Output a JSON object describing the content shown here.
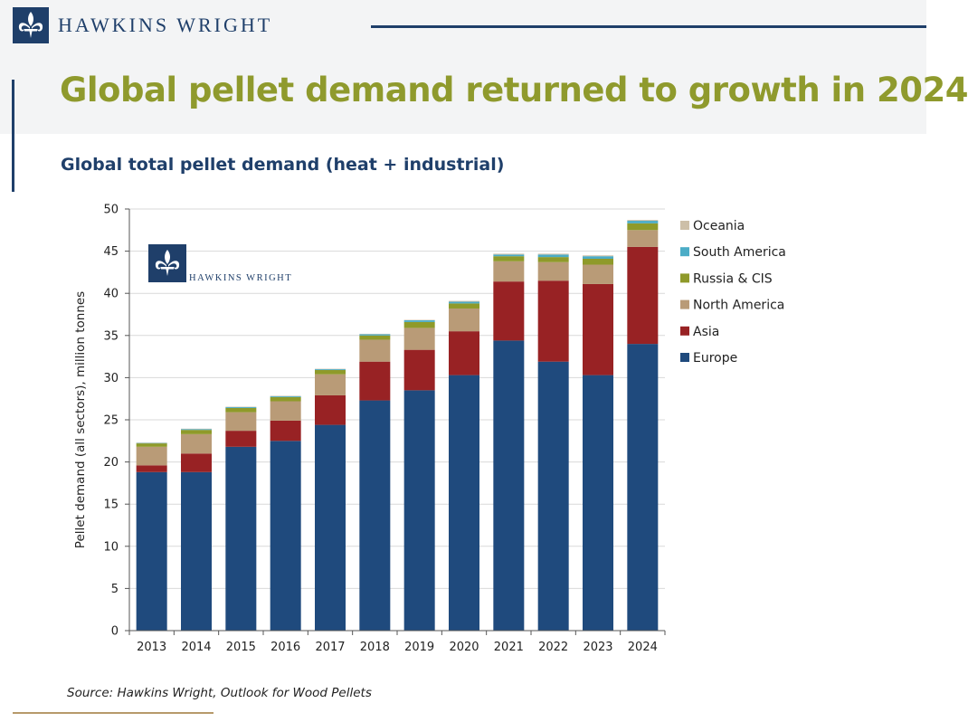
{
  "brand": {
    "name": "HAWKINS WRIGHT",
    "watermark_name": "HAWKINS WRIGHT"
  },
  "page": {
    "title": "Global pellet demand returned to growth in 2024",
    "subtitle": "Global total pellet demand (heat + industrial)",
    "source": "Source: Hawkins Wright, Outlook for Wood Pellets"
  },
  "colors": {
    "brand": "#1f3f6a",
    "title": "#8f9a2d",
    "rule_accent": "#b79a6a"
  },
  "chart_data": {
    "type": "bar",
    "stacked": true,
    "title": "",
    "xlabel": "",
    "ylabel": "Pellet demand (all sectors), million tonnes",
    "ylim": [
      0,
      50
    ],
    "yticks": [
      0,
      5,
      10,
      15,
      20,
      25,
      30,
      35,
      40,
      45,
      50
    ],
    "grid": true,
    "legend_position": "right",
    "categories": [
      "2013",
      "2014",
      "2015",
      "2016",
      "2017",
      "2018",
      "2019",
      "2020",
      "2021",
      "2022",
      "2023",
      "2024"
    ],
    "series": [
      {
        "name": "Europe",
        "color": "#1f4a7d",
        "values": [
          18.8,
          18.8,
          21.8,
          22.5,
          24.4,
          27.3,
          28.5,
          30.3,
          34.4,
          31.9,
          30.3,
          34.0
        ]
      },
      {
        "name": "Asia",
        "color": "#982224",
        "values": [
          0.8,
          2.2,
          1.9,
          2.4,
          3.5,
          4.6,
          4.8,
          5.2,
          7.0,
          9.6,
          10.8,
          11.5
        ]
      },
      {
        "name": "North America",
        "color": "#b99b77",
        "values": [
          2.2,
          2.3,
          2.2,
          2.3,
          2.5,
          2.6,
          2.6,
          2.7,
          2.4,
          2.2,
          2.3,
          2.0
        ]
      },
      {
        "name": "Russia & CIS",
        "color": "#8f9a2a",
        "values": [
          0.4,
          0.5,
          0.5,
          0.5,
          0.5,
          0.5,
          0.7,
          0.6,
          0.6,
          0.6,
          0.7,
          0.8
        ]
      },
      {
        "name": "South America",
        "color": "#4bacc6",
        "values": [
          0.05,
          0.1,
          0.1,
          0.1,
          0.1,
          0.15,
          0.2,
          0.2,
          0.2,
          0.3,
          0.3,
          0.3
        ]
      },
      {
        "name": "Oceania",
        "color": "#cdbfa8",
        "values": [
          0.05,
          0.05,
          0.05,
          0.05,
          0.05,
          0.05,
          0.05,
          0.1,
          0.1,
          0.1,
          0.1,
          0.1
        ]
      }
    ],
    "legend_order": [
      "Oceania",
      "South America",
      "Russia & CIS",
      "North America",
      "Asia",
      "Europe"
    ]
  }
}
